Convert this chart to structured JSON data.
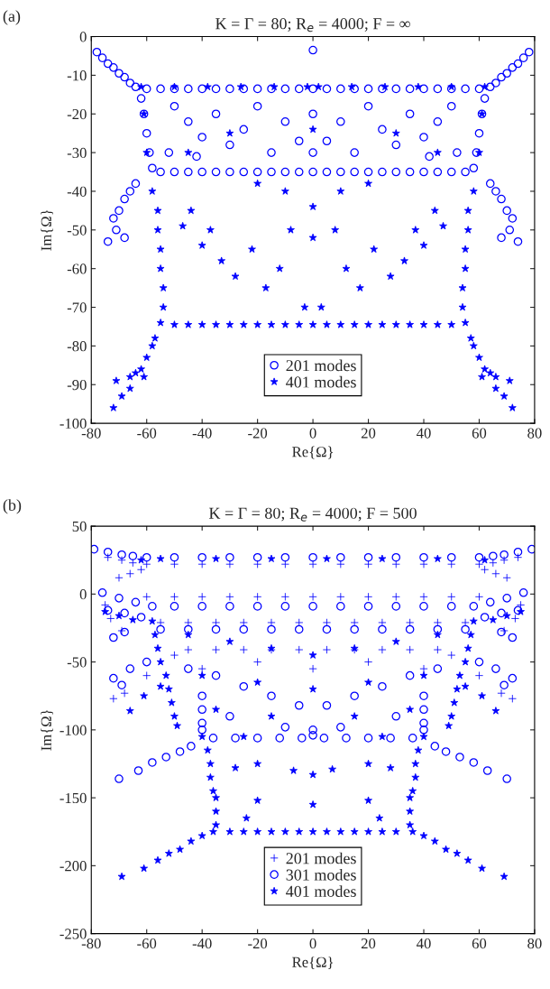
{
  "chart_data": [
    {
      "type": "scatter",
      "title": "K = Γ = 80; R$_{e}$ = 4000; F = ∞",
      "xlabel": "Re{Ω}",
      "ylabel": "Im{Ω}",
      "annotations": [
        "(a)"
      ],
      "xlim": [
        -80,
        80
      ],
      "ylim": [
        -100,
        0
      ],
      "xticks": [
        -80,
        -60,
        -40,
        -20,
        0,
        20,
        40,
        60,
        80
      ],
      "yticks": [
        -100,
        -90,
        -80,
        -70,
        -60,
        -50,
        -40,
        -30,
        -20,
        -10,
        0
      ],
      "grid": false,
      "legend": "bottom",
      "series": [
        {
          "name": "201 modes",
          "color": "#0000ff",
          "marker": "circle",
          "x": [
            0,
            -78,
            -76,
            -74,
            -72,
            -70,
            -68,
            -66,
            -64,
            64,
            66,
            68,
            70,
            72,
            74,
            76,
            78,
            -60,
            -55,
            -50,
            -45,
            -40,
            -35,
            -30,
            -25,
            -20,
            -15,
            -10,
            -5,
            0,
            5,
            10,
            15,
            20,
            25,
            30,
            35,
            40,
            45,
            50,
            55,
            60,
            -62,
            -61,
            -60,
            -59,
            -58,
            62,
            61,
            60,
            59,
            58,
            -55,
            -50,
            -45,
            -40,
            -35,
            -30,
            -25,
            -20,
            -15,
            -10,
            -5,
            0,
            5,
            10,
            15,
            20,
            25,
            30,
            35,
            40,
            45,
            50,
            55,
            -50,
            -45,
            -40,
            -35,
            -30,
            -25,
            -20,
            -15,
            -10,
            -5,
            0,
            0,
            5,
            10,
            15,
            20,
            25,
            30,
            35,
            40,
            45,
            50,
            -52,
            52,
            -42,
            42,
            -64,
            -66,
            -68,
            -70,
            -72,
            -74,
            -71,
            -68,
            64,
            66,
            68,
            70,
            72,
            74,
            71,
            68
          ],
          "values": [
            -3.5,
            -4,
            -5.5,
            -7,
            -8,
            -9.5,
            -10.5,
            -12,
            -13,
            -13,
            -12,
            -10.5,
            -9.5,
            -8,
            -7,
            -5.5,
            -4,
            -13.5,
            -13.5,
            -13.5,
            -13.5,
            -13.5,
            -13.5,
            -13.5,
            -13.5,
            -13.5,
            -13.5,
            -13.5,
            -13.5,
            -13.5,
            -13.5,
            -13.5,
            -13.5,
            -13.5,
            -13.5,
            -13.5,
            -13.5,
            -13.5,
            -13.5,
            -13.5,
            -13.5,
            -13.5,
            -16,
            -20,
            -25,
            -30,
            -34,
            -16,
            -20,
            -25,
            -30,
            -34,
            -35,
            -35,
            -35,
            -35,
            -35,
            -35,
            -35,
            -35,
            -35,
            -35,
            -35,
            -35,
            -35,
            -35,
            -35,
            -35,
            -35,
            -35,
            -35,
            -35,
            -35,
            -35,
            -35,
            -18,
            -22,
            -26,
            -20,
            -28,
            -24,
            -18,
            -30,
            -22,
            -27,
            -20,
            -30,
            -27,
            -22,
            -30,
            -18,
            -24,
            -28,
            -20,
            -26,
            -22,
            -18,
            -30,
            -30,
            -31,
            -31,
            -38,
            -40,
            -42,
            -45,
            -47,
            -53,
            -50,
            -52,
            -38,
            -40,
            -42,
            -45,
            -47,
            -53,
            -50,
            -52
          ]
        },
        {
          "name": "401 modes",
          "color": "#0000ff",
          "marker": "star",
          "x": [
            -62,
            -50,
            -38,
            -26,
            -14,
            -2,
            2,
            14,
            26,
            38,
            50,
            62,
            -61,
            -60,
            -58,
            -56,
            -56,
            -55,
            -55,
            -54,
            -54,
            -55,
            61,
            60,
            58,
            56,
            56,
            55,
            55,
            54,
            54,
            55,
            -50,
            -45,
            -40,
            -35,
            -30,
            -25,
            -20,
            -15,
            -10,
            -5,
            0,
            5,
            10,
            15,
            20,
            25,
            30,
            35,
            40,
            45,
            50,
            -47,
            -44,
            -40,
            -37,
            -33,
            -28,
            -22,
            -17,
            -12,
            -8,
            -3,
            0,
            0,
            3,
            8,
            12,
            17,
            22,
            28,
            33,
            37,
            40,
            44,
            47,
            -20,
            20,
            -10,
            10,
            -30,
            30,
            0,
            -45,
            45,
            -57,
            -58,
            -60,
            -62,
            -64,
            -66,
            -69,
            -72,
            -61,
            -66,
            -71,
            57,
            58,
            60,
            62,
            64,
            66,
            69,
            72,
            61,
            66,
            71
          ],
          "values": [
            -13,
            -13,
            -13,
            -13,
            -13,
            -13,
            -13,
            -13,
            -13,
            -13,
            -13,
            -13,
            -20,
            -30,
            -40,
            -45,
            -50,
            -55,
            -60,
            -65,
            -70,
            -74,
            -20,
            -30,
            -40,
            -45,
            -50,
            -55,
            -60,
            -65,
            -70,
            -74,
            -74.5,
            -74.5,
            -74.5,
            -74.5,
            -74.5,
            -74.5,
            -74.5,
            -74.5,
            -74.5,
            -74.5,
            -74.5,
            -74.5,
            -74.5,
            -74.5,
            -74.5,
            -74.5,
            -74.5,
            -74.5,
            -74.5,
            -74.5,
            -74.5,
            -49,
            -45,
            -54,
            -50,
            -58,
            -62,
            -55,
            -65,
            -60,
            -50,
            -70,
            -44,
            -52,
            -70,
            -50,
            -60,
            -65,
            -55,
            -62,
            -58,
            -50,
            -54,
            -45,
            -49,
            -38,
            -38,
            -40,
            -40,
            -25,
            -25,
            -24,
            -30,
            -30,
            -78,
            -80,
            -83,
            -86,
            -87,
            -91,
            -93,
            -96,
            -88,
            -88,
            -89,
            -78,
            -80,
            -83,
            -86,
            -87,
            -91,
            -93,
            -96,
            -88,
            -88,
            -89
          ]
        }
      ]
    },
    {
      "type": "scatter",
      "title": "K = Γ = 80; R$_{e}$ = 4000; F = 500",
      "xlabel": "Re{Ω}",
      "ylabel": "Im{Ω}",
      "annotations": [
        "(b)"
      ],
      "xlim": [
        -80,
        80
      ],
      "ylim": [
        -250,
        50
      ],
      "xticks": [
        -80,
        -60,
        -40,
        -20,
        0,
        20,
        40,
        60,
        80
      ],
      "yticks": [
        -250,
        -200,
        -150,
        -100,
        -50,
        0,
        50
      ],
      "grid": false,
      "legend": "bottom",
      "series": [
        {
          "name": "201 modes",
          "color": "#0000ff",
          "marker": "cross",
          "x": [
            -60,
            -50,
            -40,
            -30,
            -20,
            -10,
            0,
            10,
            20,
            30,
            40,
            50,
            60,
            -74,
            -69,
            -65,
            -70,
            -66,
            -62,
            74,
            69,
            65,
            70,
            66,
            62,
            -60,
            -50,
            -40,
            -30,
            -20,
            -10,
            0,
            10,
            20,
            30,
            40,
            50,
            60,
            -55,
            -45,
            -35,
            -25,
            -15,
            -5,
            5,
            15,
            25,
            35,
            45,
            55,
            -45,
            -35,
            -25,
            -15,
            -5,
            5,
            15,
            25,
            35,
            45,
            -75,
            -73,
            -69,
            -60,
            -68,
            -72,
            -50,
            -40,
            -20,
            0,
            20,
            40,
            50,
            60,
            68,
            72,
            69,
            73,
            75
          ],
          "values": [
            22,
            22,
            22,
            22,
            22,
            22,
            22,
            22,
            22,
            22,
            22,
            22,
            22,
            27,
            25,
            23,
            12,
            15,
            18,
            27,
            25,
            23,
            12,
            15,
            18,
            -2,
            -2,
            -2,
            -2,
            -2,
            -2,
            -2,
            -2,
            -2,
            -2,
            -2,
            -2,
            -2,
            -21,
            -21,
            -21,
            -21,
            -21,
            -21,
            -21,
            -21,
            -21,
            -21,
            -21,
            -21,
            -41,
            -41,
            -41,
            -41,
            -41,
            -41,
            -41,
            -41,
            -41,
            -41,
            -8,
            -18,
            -27,
            -60,
            -73,
            -77,
            -45,
            -55,
            -50,
            -55,
            -50,
            -55,
            -45,
            -60,
            -73,
            -77,
            -27,
            -18,
            -8
          ]
        },
        {
          "name": "301 modes",
          "color": "#0000ff",
          "marker": "circle",
          "x": [
            -60,
            -50,
            -40,
            -30,
            -20,
            -10,
            0,
            10,
            20,
            30,
            40,
            50,
            60,
            -79,
            -74,
            -69,
            -65,
            65,
            69,
            74,
            79,
            -76,
            -70,
            -64,
            -58,
            58,
            64,
            70,
            76,
            -50,
            -40,
            -30,
            -20,
            -10,
            0,
            10,
            20,
            30,
            40,
            50,
            -72,
            -68,
            -74,
            -68,
            -62,
            62,
            68,
            74,
            68,
            72,
            -55,
            -45,
            -35,
            -25,
            -15,
            -5,
            5,
            15,
            25,
            35,
            45,
            55,
            -45,
            -35,
            -25,
            -15,
            -5,
            5,
            15,
            25,
            35,
            45,
            -30,
            30,
            -10,
            10,
            0,
            0,
            -40,
            -40,
            -40,
            -40,
            40,
            40,
            40,
            40,
            -36,
            -28,
            -20,
            -12,
            -4,
            4,
            12,
            20,
            28,
            36,
            -44,
            -48,
            -53,
            -58,
            -63,
            -70,
            44,
            48,
            53,
            58,
            63,
            70,
            -72,
            -66,
            -60,
            -69,
            72,
            66,
            60,
            69
          ],
          "values": [
            27,
            27,
            27,
            27,
            27,
            27,
            27,
            27,
            27,
            27,
            27,
            27,
            27,
            33,
            31,
            29,
            28,
            28,
            29,
            31,
            33,
            1,
            -3,
            -6,
            -9,
            -9,
            -6,
            -3,
            1,
            -9,
            -9,
            -9,
            -9,
            -9,
            -9,
            -9,
            -9,
            -9,
            -9,
            -9,
            -32,
            -28,
            -12,
            -14,
            -17,
            -17,
            -14,
            -12,
            -28,
            -32,
            -26,
            -26,
            -26,
            -26,
            -26,
            -26,
            -26,
            -26,
            -26,
            -26,
            -26,
            -26,
            -55,
            -60,
            -68,
            -75,
            -82,
            -82,
            -75,
            -68,
            -60,
            -55,
            -90,
            -90,
            -98,
            -98,
            -100,
            -104,
            -75,
            -85,
            -95,
            -100,
            -75,
            -85,
            -95,
            -100,
            -106,
            -106,
            -106,
            -106,
            -106,
            -106,
            -106,
            -106,
            -106,
            -106,
            -112,
            -116,
            -120,
            -124,
            -130,
            -136,
            -112,
            -116,
            -120,
            -124,
            -130,
            -136,
            -62,
            -55,
            -50,
            -67,
            -62,
            -55,
            -50,
            -67
          ]
        },
        {
          "name": "401 modes",
          "color": "#0000ff",
          "marker": "star",
          "x": [
            -62,
            -55,
            -35,
            -15,
            5,
            25,
            45,
            62,
            -75,
            -70,
            -65,
            65,
            70,
            75,
            -58,
            -57,
            -56,
            -55,
            -53,
            -52,
            -51,
            -50,
            -49,
            58,
            57,
            56,
            55,
            53,
            52,
            51,
            50,
            49,
            -45,
            -30,
            -15,
            0,
            15,
            30,
            45,
            -40,
            -20,
            0,
            20,
            40,
            -35,
            -15,
            15,
            35,
            -25,
            25,
            -40,
            -38,
            -37,
            -37,
            -36,
            -35,
            -35,
            -35,
            -36,
            40,
            38,
            37,
            37,
            36,
            35,
            35,
            35,
            36,
            -30,
            -25,
            -20,
            -15,
            -10,
            -5,
            0,
            5,
            10,
            15,
            20,
            25,
            30,
            -40,
            -44,
            -48,
            -52,
            -56,
            -61,
            -69,
            40,
            44,
            48,
            52,
            56,
            61,
            69,
            -28,
            -20,
            -20,
            0,
            -7,
            7,
            0,
            20,
            20,
            28,
            -24,
            24,
            -66,
            -61,
            -55,
            66,
            61,
            55
          ],
          "values": [
            25,
            26,
            26,
            26,
            26,
            26,
            26,
            25,
            -13,
            -16,
            -19,
            -19,
            -16,
            -13,
            -20,
            -30,
            -40,
            -50,
            -60,
            -70,
            -80,
            -90,
            -97,
            -20,
            -30,
            -40,
            -50,
            -60,
            -70,
            -80,
            -90,
            -97,
            -30,
            -35,
            -40,
            -45,
            -40,
            -35,
            -30,
            -60,
            -65,
            -70,
            -65,
            -60,
            -85,
            -90,
            -90,
            -85,
            -105,
            -105,
            -105,
            -115,
            -125,
            -135,
            -145,
            -150,
            -160,
            -170,
            -175,
            -105,
            -115,
            -125,
            -135,
            -145,
            -150,
            -160,
            -170,
            -175,
            -175,
            -175,
            -175,
            -175,
            -175,
            -175,
            -175,
            -175,
            -175,
            -175,
            -175,
            -175,
            -175,
            -178,
            -182,
            -188,
            -191,
            -196,
            -202,
            -208,
            -178,
            -182,
            -188,
            -191,
            -196,
            -202,
            -208,
            -128,
            -125,
            -152,
            -133,
            -130,
            -129,
            -155,
            -152,
            -125,
            -128,
            -165,
            -165,
            -86,
            -75,
            -68,
            -86,
            -75,
            -68
          ]
        }
      ]
    }
  ]
}
